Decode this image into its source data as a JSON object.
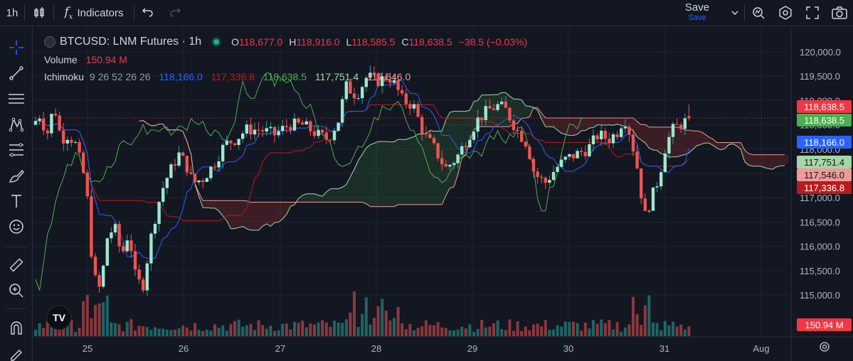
{
  "toolbar": {
    "interval": "1h",
    "indicators_label": "Indicators",
    "save_label": "Save",
    "save_sub": "Save"
  },
  "symbol": {
    "title": "BTCUSD: LNM Futures · 1h",
    "o_label": "O",
    "o_val": "118,677.0",
    "h_label": "H",
    "h_val": "118,916.0",
    "l_label": "L",
    "l_val": "118,585.5",
    "c_label": "C",
    "c_val": "118,638.5",
    "change": "−38.5 (−0.03%)"
  },
  "volume": {
    "label": "Volume",
    "value": "150.94 M"
  },
  "ichimoku": {
    "label": "Ichimoku",
    "params": "9 26 52 26 26",
    "v1": "118,166.0",
    "v2": "117,336.8",
    "v3": "118,638.5",
    "v4": "117,751.4",
    "v5": "117,546.0"
  },
  "price_axis": {
    "ticks": [
      "120,000.0",
      "119,500.0",
      "119,000.0",
      "118,500.0",
      "118,000.0",
      "117,500.0",
      "117,000.0",
      "116,500.0",
      "116,000.0",
      "115,500.0",
      "115,000.0"
    ],
    "tags": [
      {
        "text": "118,638.5",
        "color": "#f23645"
      },
      {
        "text": "118,638.5",
        "color": "#4caf50"
      },
      {
        "text": "118,166.0",
        "color": "#2962ff"
      },
      {
        "text": "117,751.4",
        "color": "#a5d6a7"
      },
      {
        "text": "117,546.0",
        "color": "#ef9a9a"
      },
      {
        "text": "117,336.8",
        "color": "#b71c1c"
      },
      {
        "text": "150.94 M",
        "color": "#f23645"
      }
    ]
  },
  "time_axis": {
    "labels": [
      "25",
      "26",
      "27",
      "28",
      "29",
      "30",
      "31",
      "Aug"
    ]
  },
  "colors": {
    "up": "#26a69a",
    "down": "#ef5350",
    "up_body": "#9fe7cf",
    "tenkan": "#2962ff",
    "kijun": "#b71c1c",
    "chikou": "#4caf50",
    "spanA": "#a5d6a7",
    "spanB": "#ef9a9a"
  },
  "chart_data": {
    "type": "candlestick",
    "symbol": "BTCUSD: LNM Futures",
    "interval": "1h",
    "ylim": [
      114800,
      120200
    ],
    "days": [
      "25",
      "26",
      "27",
      "28",
      "29",
      "30",
      "31",
      "Aug"
    ],
    "candles_sample": [
      {
        "o": 118500,
        "h": 119000,
        "l": 118200,
        "c": 118700
      },
      {
        "o": 118700,
        "h": 119300,
        "l": 118100,
        "c": 118300
      },
      {
        "o": 118300,
        "h": 118500,
        "l": 115200,
        "c": 115400
      },
      {
        "o": 115400,
        "h": 116600,
        "l": 114900,
        "c": 116300
      },
      {
        "o": 116300,
        "h": 117300,
        "l": 116000,
        "c": 117100
      },
      {
        "o": 117100,
        "h": 118100,
        "l": 116800,
        "c": 117800
      },
      {
        "o": 117800,
        "h": 118500,
        "l": 117600,
        "c": 118300
      },
      {
        "o": 118300,
        "h": 119900,
        "l": 118000,
        "c": 119500
      },
      {
        "o": 119500,
        "h": 119800,
        "l": 118800,
        "c": 119000
      },
      {
        "o": 119000,
        "h": 119000,
        "l": 117500,
        "c": 117700
      },
      {
        "o": 117700,
        "h": 119300,
        "l": 117500,
        "c": 119000
      },
      {
        "o": 119000,
        "h": 119000,
        "l": 117100,
        "c": 117300
      },
      {
        "o": 117300,
        "h": 118800,
        "l": 117100,
        "c": 118400
      },
      {
        "o": 118400,
        "h": 118700,
        "l": 117400,
        "c": 117500
      },
      {
        "o": 117500,
        "h": 118300,
        "l": 115800,
        "c": 116500
      },
      {
        "o": 116500,
        "h": 118300,
        "l": 116400,
        "c": 118000
      },
      {
        "o": 118000,
        "h": 118900,
        "l": 118000,
        "c": 118638.5
      }
    ],
    "last_close": 118638.5,
    "volume_last": "150.94 M"
  }
}
